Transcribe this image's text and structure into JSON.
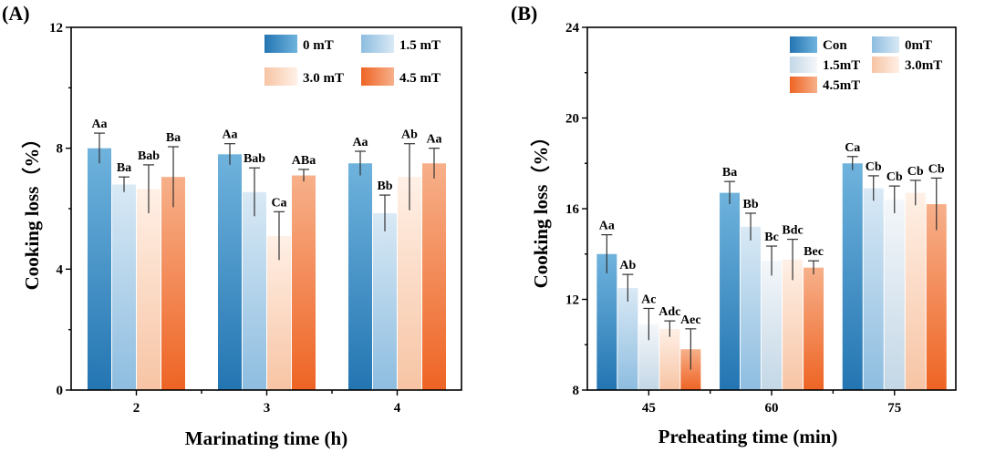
{
  "chart_data": [
    {
      "panel_label": "(A)",
      "type": "bar",
      "xlabel": "Marinating time (h)",
      "ylabel": "Cooking loss（%）",
      "ylim": [
        0,
        12
      ],
      "yticks": [
        "0",
        "4",
        "8",
        "12"
      ],
      "categories": [
        "2",
        "3",
        "4"
      ],
      "legend_placement": "top-right",
      "grid": false,
      "series": [
        {
          "name": "0 mT",
          "color_light": "#6fb3dd",
          "color_dark": "#2375b2",
          "values": [
            8.0,
            7.8,
            7.5
          ],
          "errors": [
            0.5,
            0.35,
            0.4
          ],
          "labels": [
            "Aa",
            "Aa",
            "Aa"
          ]
        },
        {
          "name": "1.5 mT",
          "color_light": "#d9e9f5",
          "color_dark": "#8dbde0",
          "values": [
            6.8,
            6.55,
            5.85
          ],
          "errors": [
            0.25,
            0.8,
            0.6
          ],
          "labels": [
            "Ba",
            "Bab",
            "Bb"
          ]
        },
        {
          "name": "3.0 mT",
          "color_light": "#fff0e6",
          "color_dark": "#f7c4a4",
          "values": [
            6.65,
            5.1,
            7.05
          ],
          "errors": [
            0.8,
            0.8,
            1.1
          ],
          "labels": [
            "Bab",
            "Ca",
            "Ab"
          ]
        },
        {
          "name": "4.5 mT",
          "color_light": "#f7b08a",
          "color_dark": "#ee6424",
          "values": [
            7.05,
            7.1,
            7.5
          ],
          "errors": [
            1.0,
            0.2,
            0.5
          ],
          "labels": [
            "Ba",
            "ABa",
            "Aa"
          ]
        }
      ]
    },
    {
      "panel_label": "(B)",
      "type": "bar",
      "xlabel": "Preheating time (min)",
      "ylabel": "Cooking loss（%）",
      "ylim": [
        8,
        24
      ],
      "yticks": [
        "8",
        "12",
        "16",
        "20",
        "24"
      ],
      "categories": [
        "45",
        "60",
        "75"
      ],
      "legend_placement": "top-left",
      "grid": false,
      "series": [
        {
          "name": "Con",
          "color_light": "#6fb3dd",
          "color_dark": "#2375b2",
          "values": [
            14.0,
            16.7,
            18.0
          ],
          "errors": [
            0.85,
            0.5,
            0.3
          ],
          "labels": [
            "Aa",
            "Ba",
            "Ca"
          ]
        },
        {
          "name": "0mT",
          "color_light": "#d9e9f5",
          "color_dark": "#8dbde0",
          "values": [
            12.5,
            15.2,
            16.9
          ],
          "errors": [
            0.6,
            0.6,
            0.55
          ],
          "labels": [
            "Ab",
            "Bb",
            "Cb"
          ]
        },
        {
          "name": "1.5mT",
          "color_light": "#f4f7fa",
          "color_dark": "#c3d7e6",
          "values": [
            10.9,
            13.7,
            16.4
          ],
          "errors": [
            0.7,
            0.65,
            0.6
          ],
          "labels": [
            "Ac",
            "Bc",
            "Cb"
          ]
        },
        {
          "name": "3.0mT",
          "color_light": "#fff0e6",
          "color_dark": "#f7c4a4",
          "values": [
            10.7,
            13.75,
            16.7
          ],
          "errors": [
            0.35,
            0.9,
            0.55
          ],
          "labels": [
            "Adc",
            "Bdc",
            "Cb"
          ]
        },
        {
          "name": "4.5mT",
          "color_light": "#f7b08a",
          "color_dark": "#ee6424",
          "values": [
            9.8,
            13.4,
            16.2
          ],
          "errors": [
            0.9,
            0.3,
            1.15
          ],
          "labels": [
            "Aec",
            "Bec",
            "Cb"
          ]
        }
      ]
    }
  ]
}
